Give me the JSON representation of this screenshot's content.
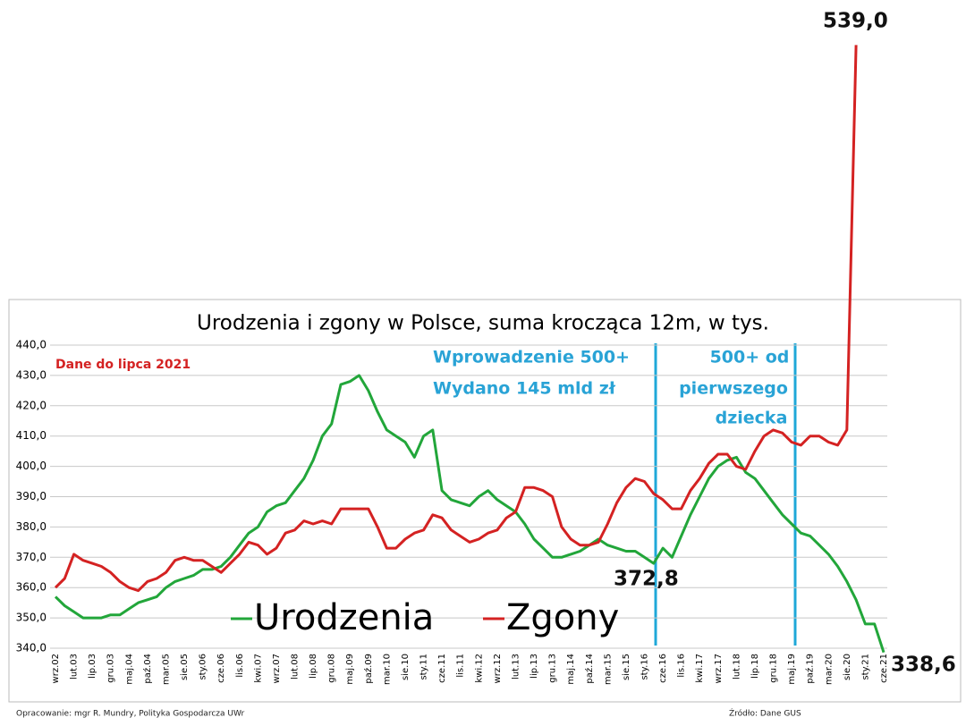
{
  "chart_data": {
    "type": "line",
    "title": "Urodzenia i zgony w Polsce, suma krocząca 12m, w tys.",
    "categories": [
      "wrz.02",
      null,
      "lut.03",
      null,
      "lip.03",
      null,
      "gru.03",
      null,
      "maj.04",
      null,
      "paź.04",
      null,
      "mar.05",
      null,
      "sie.05",
      null,
      "sty.06",
      null,
      "cze.06",
      null,
      "lis.06",
      null,
      "kwi.07",
      null,
      "wrz.07",
      null,
      "lut.08",
      null,
      "lip.08",
      null,
      "gru.08",
      null,
      "maj.09",
      null,
      "paź.09",
      null,
      "mar.10",
      null,
      "sie.10",
      null,
      "sty.11",
      null,
      "cze.11",
      null,
      "lis.11",
      null,
      "kwi.12",
      null,
      "wrz.12",
      null,
      "lut.13",
      null,
      "lip.13",
      null,
      "gru.13",
      null,
      "maj.14",
      null,
      "paź.14",
      null,
      "mar.15",
      null,
      "sie.15",
      null,
      "sty.16",
      null,
      "cze.16",
      null,
      "lis.16",
      null,
      "kwi.17",
      null,
      "wrz.17",
      null,
      "lut.18",
      null,
      "lip.18",
      null,
      "gru.18",
      null,
      "maj.19",
      null,
      "paź.19",
      null,
      "mar.20",
      null,
      "sie.20",
      null,
      "sty.21",
      null,
      "cze.21"
    ],
    "series": [
      {
        "name": "Urodzenia",
        "color": "#22a63a",
        "values": [
          357,
          354,
          352,
          350,
          350,
          350,
          351,
          351,
          353,
          355,
          356,
          357,
          360,
          362,
          363,
          364,
          366,
          366,
          367,
          370,
          374,
          378,
          380,
          385,
          387,
          388,
          392,
          396,
          402,
          410,
          414,
          427,
          428,
          430,
          425,
          418,
          412,
          410,
          408,
          403,
          410,
          412,
          392,
          389,
          388,
          387,
          390,
          392,
          389,
          387,
          385,
          381,
          376,
          373,
          370,
          370,
          371,
          372,
          374,
          376,
          374,
          373,
          372,
          372,
          370,
          368,
          373,
          370,
          377,
          384,
          390,
          396,
          400,
          402,
          403,
          398,
          396,
          392,
          388,
          384,
          381,
          378,
          377,
          374,
          371,
          367,
          362,
          356,
          348,
          348,
          338.6
        ]
      },
      {
        "name": "Zgony",
        "color": "#d42222",
        "values": [
          360,
          363,
          371,
          369,
          368,
          367,
          365,
          362,
          360,
          359,
          362,
          363,
          365,
          369,
          370,
          369,
          369,
          367,
          365,
          368,
          371,
          375,
          374,
          371,
          373,
          378,
          379,
          382,
          381,
          382,
          381,
          386,
          386,
          386,
          386,
          380,
          373,
          373,
          376,
          378,
          379,
          384,
          383,
          379,
          377,
          375,
          376,
          378,
          379,
          383,
          385,
          393,
          393,
          392,
          390,
          380,
          376,
          374,
          374,
          375,
          381,
          388,
          393,
          396,
          395,
          391,
          389,
          386,
          386,
          392,
          396,
          401,
          404,
          404,
          400,
          399,
          405,
          410,
          412,
          411,
          408,
          407,
          410,
          410,
          408,
          407,
          412,
          539,
          null,
          null,
          null
        ]
      }
    ],
    "ylim": [
      340,
      440
    ],
    "yticks": [
      {
        "value": 340,
        "label": "340,0"
      },
      {
        "value": 350,
        "label": "350,0"
      },
      {
        "value": 360,
        "label": "360,0"
      },
      {
        "value": 370,
        "label": "370,0"
      },
      {
        "value": 380,
        "label": "380,0"
      },
      {
        "value": 390,
        "label": "390,0"
      },
      {
        "value": 400,
        "label": "400,0"
      },
      {
        "value": 410,
        "label": "410,0"
      },
      {
        "value": 420,
        "label": "420,0"
      },
      {
        "value": 430,
        "label": "430,0"
      },
      {
        "value": 440,
        "label": "440,0"
      }
    ],
    "grid": true,
    "annotations": [
      "539,0",
      "372,8",
      "338,6",
      "Dane do lipca 2021",
      "Wprowadzenie 500+",
      "Wydano 145 mld zł",
      "500+ od",
      "pierwszego",
      "dziecka"
    ],
    "footer_left": "Opracowanie: mgr R. Mundry, Polityka Gospodarcza UWr",
    "footer_right": "Źródło: Dane GUS"
  }
}
